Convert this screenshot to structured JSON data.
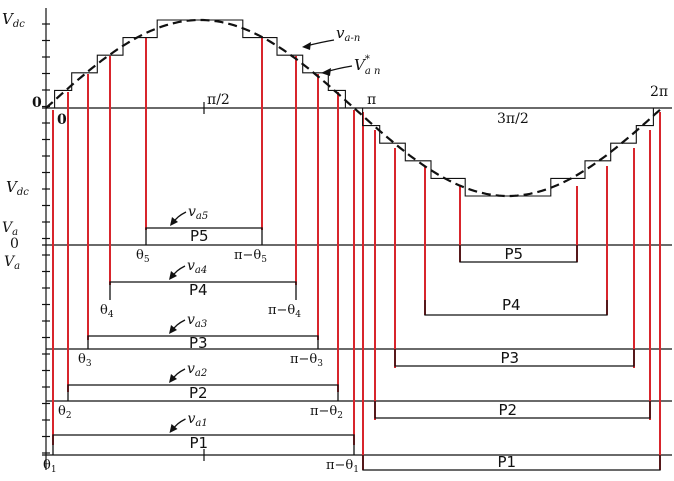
{
  "axis_labels": {
    "vdc_top": "V",
    "vdc_top_sub": "dc",
    "zero_top": "0",
    "vdc_mid": "V",
    "vdc_mid_sub": "dc",
    "va_axis_1": "V",
    "va_axis_1_sub": "a",
    "zero_mid": "0",
    "va_axis_2": "V",
    "va_axis_2_sub": "a"
  },
  "angle_labels": {
    "origin_zero": "0",
    "pi_over_2": "π/2",
    "pi": "π",
    "three_pi_over_2": "3π/2",
    "two_pi": "2π"
  },
  "waveform_labels": {
    "staircase": "v",
    "staircase_sub": "a-n",
    "reference": "V",
    "reference_sup": "*",
    "reference_sub": "a n"
  },
  "levels": [
    {
      "id": "P5",
      "label": "P5",
      "curve": "v",
      "curve_sub": "a5",
      "theta": "θ",
      "theta_sub": "5",
      "pi_minus": "π−θ",
      "pi_minus_sub": "5"
    },
    {
      "id": "P4",
      "label": "P4",
      "curve": "v",
      "curve_sub": "a4",
      "theta": "θ",
      "theta_sub": "4",
      "pi_minus": "π−θ",
      "pi_minus_sub": "4"
    },
    {
      "id": "P3",
      "label": "P3",
      "curve": "v",
      "curve_sub": "a3",
      "theta": "θ",
      "theta_sub": "3",
      "pi_minus": "π−θ",
      "pi_minus_sub": "3"
    },
    {
      "id": "P2",
      "label": "P2",
      "curve": "v",
      "curve_sub": "a2",
      "theta": "θ",
      "theta_sub": "2",
      "pi_minus": "π−θ",
      "pi_minus_sub": "2"
    },
    {
      "id": "P1",
      "label": "P1",
      "curve": "v",
      "curve_sub": "a1",
      "theta": "θ",
      "theta_sub": "1",
      "pi_minus": "π−θ",
      "pi_minus_sub": "1"
    }
  ],
  "negative_levels": [
    {
      "id": "P5-neg",
      "label": "P5"
    },
    {
      "id": "P4-neg",
      "label": "P4"
    },
    {
      "id": "P3-neg",
      "label": "P3"
    },
    {
      "id": "P2-neg",
      "label": "P2"
    },
    {
      "id": "P1-neg",
      "label": "P1"
    }
  ],
  "colors": {
    "switching_line": "#d8252c",
    "ink": "#111111"
  }
}
